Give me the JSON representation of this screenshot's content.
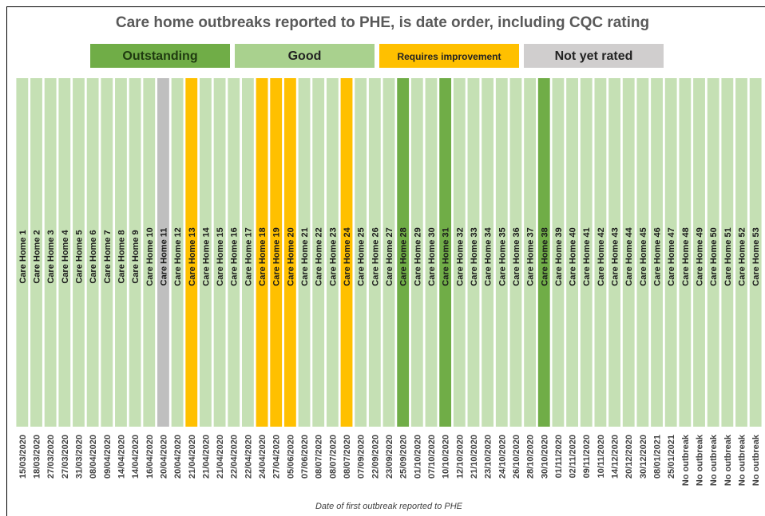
{
  "chart_data": {
    "type": "tile",
    "title": "Care home outbreaks reported to PHE, is date order, including CQC rating",
    "x_label": "Date of first outbreak reported to PHE",
    "legend": [
      {
        "name": "Outstanding",
        "color": "#70ad47"
      },
      {
        "name": "Good",
        "color": "#a9d18e"
      },
      {
        "name": "Requires improvement",
        "color": "#ffc000"
      },
      {
        "name": "Not yet rated",
        "color": "#d0cece"
      }
    ],
    "tile_colors": {
      "Outstanding": "#70ad47",
      "Good": "#c5e0b4",
      "Requires improvement": "#ffc000",
      "Not yet rated": "#bfbfbf"
    },
    "categories": [
      "Care Home 1",
      "Care Home 2",
      "Care Home 3",
      "Care Home 4",
      "Care Home 5",
      "Care Home 6",
      "Care Home 7",
      "Care Home 8",
      "Care Home 9",
      "Care Home 10",
      "Care Home 11",
      "Care Home 12",
      "Care Home 13",
      "Care Home 14",
      "Care Home 15",
      "Care Home 16",
      "Care Home 17",
      "Care Home 18",
      "Care Home 19",
      "Care Home 20",
      "Care Home 21",
      "Care Home 22",
      "Care Home 23",
      "Care Home 24",
      "Care Home 25",
      "Care Home 26",
      "Care Home 27",
      "Care Home 28",
      "Care Home 29",
      "Care Home 30",
      "Care Home 31",
      "Care Home 32",
      "Care Home 33",
      "Care Home 34",
      "Care Home 35",
      "Care Home 36",
      "Care Home 37",
      "Care Home 38",
      "Care Home 39",
      "Care Home 40",
      "Care Home 41",
      "Care Home 42",
      "Care Home 43",
      "Care Home 44",
      "Care Home 45",
      "Care Home 46",
      "Care Home 47",
      "Care Home 48",
      "Care Home 49",
      "Care Home 50",
      "Care Home 51",
      "Care Home 52",
      "Care Home 53"
    ],
    "dates": [
      "15/03/2020",
      "18/03/2020",
      "27/03/2020",
      "27/03/2020",
      "31/03/2020",
      "08/04/2020",
      "09/04/2020",
      "14/04/2020",
      "14/04/2020",
      "16/04/2020",
      "20/04/2020",
      "20/04/2020",
      "21/04/2020",
      "21/04/2020",
      "21/04/2020",
      "22/04/2020",
      "22/04/2020",
      "24/04/2020",
      "27/04/2020",
      "05/06/2020",
      "07/06/2020",
      "08/07/2020",
      "08/07/2020",
      "08/07/2020",
      "07/09/2020",
      "22/09/2020",
      "23/09/2020",
      "25/09/2020",
      "01/10/2020",
      "07/10/2020",
      "10/10/2020",
      "12/10/2020",
      "21/10/2020",
      "23/10/2020",
      "24/10/2020",
      "26/10/2020",
      "28/10/2020",
      "30/10/2020",
      "01/11/2020",
      "02/11/2020",
      "09/11/2020",
      "10/11/2020",
      "14/12/2020",
      "20/12/2020",
      "30/12/2020",
      "08/01/2021",
      "25/01/2021",
      "No outbreak",
      "No outbreak",
      "No outbreak",
      "No outbreak",
      "No outbreak",
      "No outbreak"
    ],
    "ratings": [
      "Good",
      "Good",
      "Good",
      "Good",
      "Good",
      "Good",
      "Good",
      "Good",
      "Good",
      "Good",
      "Not yet rated",
      "Good",
      "Requires improvement",
      "Good",
      "Good",
      "Good",
      "Good",
      "Requires improvement",
      "Requires improvement",
      "Requires improvement",
      "Good",
      "Good",
      "Good",
      "Requires improvement",
      "Good",
      "Good",
      "Good",
      "Outstanding",
      "Good",
      "Good",
      "Outstanding",
      "Good",
      "Good",
      "Good",
      "Good",
      "Good",
      "Good",
      "Outstanding",
      "Good",
      "Good",
      "Good",
      "Good",
      "Good",
      "Good",
      "Good",
      "Good",
      "Good",
      "Good",
      "Good",
      "Good",
      "Good",
      "Good",
      "Good"
    ]
  }
}
